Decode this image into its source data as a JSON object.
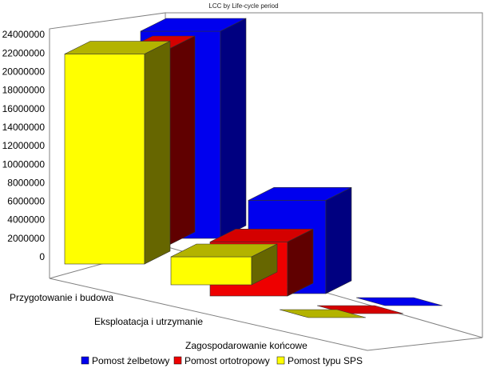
{
  "chart_data": {
    "type": "bar",
    "subtype": "3d-clustered",
    "title": "LCC by Life-cycle period",
    "categories": [
      "Przygotowanie i budowa",
      "Eksploatacja i utrzymanie",
      "Zagospodarowanie końcowe"
    ],
    "series": [
      {
        "name": "Pomost żelbetowy",
        "values": [
          22200000,
          10000000,
          200000
        ],
        "color": "#0000ee"
      },
      {
        "name": "Pomost ortotropowy",
        "values": [
          21000000,
          5800000,
          200000
        ],
        "color": "#ee0000"
      },
      {
        "name": "Pomost typu SPS",
        "values": [
          22500000,
          3000000,
          200000
        ],
        "color": "#ffff00"
      }
    ],
    "y_ticks": [
      "0",
      "2000000",
      "4000000",
      "6000000",
      "8000000",
      "10000000",
      "12000000",
      "14000000",
      "16000000",
      "18000000",
      "20000000",
      "22000000",
      "24000000"
    ],
    "ylim": [
      0,
      24000000
    ],
    "grid": false,
    "legend_position": "bottom"
  }
}
